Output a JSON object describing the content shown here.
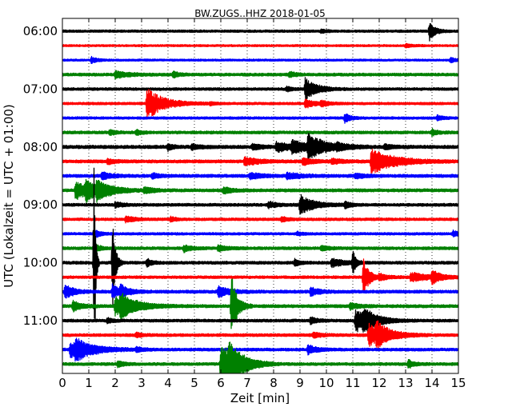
{
  "chart_data": {
    "type": "line",
    "title": "BW.ZUGS..HHZ 2018-01-05",
    "xlabel": "Zeit  [min]",
    "ylabel": "UTC (Lokalzeit = UTC + 01:00)",
    "xlim": [
      0,
      15
    ],
    "x_ticks": [
      "0",
      "1",
      "2",
      "3",
      "4",
      "5",
      "6",
      "7",
      "8",
      "9",
      "10",
      "11",
      "12",
      "13",
      "14",
      "15"
    ],
    "y_ticks": [
      {
        "label": "06:00",
        "trace": 0
      },
      {
        "label": "07:00",
        "trace": 4
      },
      {
        "label": "08:00",
        "trace": 8
      },
      {
        "label": "09:00",
        "trace": 12
      },
      {
        "label": "10:00",
        "trace": 16
      },
      {
        "label": "11:00",
        "trace": 20
      }
    ],
    "grid": "vertical dotted",
    "trace_minutes": 15,
    "colors": [
      "#000000",
      "#ff0000",
      "#0000ff",
      "#008000"
    ],
    "traces": [
      {
        "start": "06:00",
        "color": "#000000",
        "noise": 1.2,
        "events": [
          {
            "t": 13.9,
            "amp": 12,
            "dur": 0.2
          },
          {
            "t": 9.8,
            "amp": 2,
            "dur": 0.2
          }
        ]
      },
      {
        "start": "06:15",
        "color": "#ff0000",
        "noise": 1.0,
        "events": [
          {
            "t": 13.0,
            "amp": 2,
            "dur": 0.3
          }
        ]
      },
      {
        "start": "06:30",
        "color": "#0000ff",
        "noise": 1.0,
        "events": [
          {
            "t": 1.1,
            "amp": 4,
            "dur": 0.2
          },
          {
            "t": 14.7,
            "amp": 3,
            "dur": 0.2
          }
        ]
      },
      {
        "start": "06:45",
        "color": "#008000",
        "noise": 1.4,
        "events": [
          {
            "t": 2.0,
            "amp": 4,
            "dur": 0.5
          },
          {
            "t": 4.2,
            "amp": 4,
            "dur": 0.2
          },
          {
            "t": 8.6,
            "amp": 4,
            "dur": 0.2
          }
        ]
      },
      {
        "start": "07:00",
        "color": "#000000",
        "noise": 1.3,
        "events": [
          {
            "t": 9.2,
            "amp": 14,
            "dur": 0.4
          },
          {
            "t": 8.5,
            "amp": 3,
            "dur": 0.2
          }
        ]
      },
      {
        "start": "07:15",
        "color": "#ff0000",
        "noise": 1.2,
        "events": [
          {
            "t": 3.2,
            "amp": 20,
            "dur": 0.6
          },
          {
            "t": 9.2,
            "amp": 5,
            "dur": 0.4
          },
          {
            "t": 9.8,
            "amp": 4,
            "dur": 0.2
          },
          {
            "t": 5.6,
            "amp": 2,
            "dur": 0.2
          }
        ]
      },
      {
        "start": "07:30",
        "color": "#0000ff",
        "noise": 1.2,
        "events": [
          {
            "t": 10.7,
            "amp": 6,
            "dur": 0.2
          },
          {
            "t": 14.2,
            "amp": 3,
            "dur": 0.2
          }
        ]
      },
      {
        "start": "07:45",
        "color": "#008000",
        "noise": 1.4,
        "events": [
          {
            "t": 1.8,
            "amp": 3,
            "dur": 0.2
          },
          {
            "t": 14.0,
            "amp": 4,
            "dur": 0.2
          },
          {
            "t": 2.8,
            "amp": 3,
            "dur": 0.2
          }
        ]
      },
      {
        "start": "08:00",
        "color": "#000000",
        "noise": 1.6,
        "events": [
          {
            "t": 8.1,
            "amp": 6,
            "dur": 0.6
          },
          {
            "t": 8.7,
            "amp": 7,
            "dur": 0.6
          },
          {
            "t": 9.3,
            "amp": 14,
            "dur": 0.6
          },
          {
            "t": 4.0,
            "amp": 4,
            "dur": 0.2
          },
          {
            "t": 4.9,
            "amp": 3,
            "dur": 0.3
          },
          {
            "t": 7.2,
            "amp": 4,
            "dur": 0.3
          },
          {
            "t": 10.4,
            "amp": 3,
            "dur": 0.4
          },
          {
            "t": 12.2,
            "amp": 3,
            "dur": 0.3
          }
        ]
      },
      {
        "start": "08:15",
        "color": "#ff0000",
        "noise": 1.5,
        "events": [
          {
            "t": 11.7,
            "amp": 16,
            "dur": 0.8
          },
          {
            "t": 6.9,
            "amp": 5,
            "dur": 0.5
          },
          {
            "t": 9.1,
            "amp": 4,
            "dur": 0.4
          },
          {
            "t": 10.2,
            "amp": 3,
            "dur": 0.4
          },
          {
            "t": 1.7,
            "amp": 3,
            "dur": 0.3
          }
        ]
      },
      {
        "start": "08:30",
        "color": "#0000ff",
        "noise": 1.5,
        "events": [
          {
            "t": 1.5,
            "amp": 5,
            "dur": 0.3
          },
          {
            "t": 7.1,
            "amp": 4,
            "dur": 0.4
          },
          {
            "t": 8.5,
            "amp": 4,
            "dur": 0.5
          },
          {
            "t": 11.1,
            "amp": 3,
            "dur": 0.3
          },
          {
            "t": 3.4,
            "amp": 3,
            "dur": 0.3
          }
        ]
      },
      {
        "start": "08:45",
        "color": "#008000",
        "noise": 1.5,
        "events": [
          {
            "t": 0.5,
            "amp": 12,
            "dur": 0.5
          },
          {
            "t": 0.9,
            "amp": 10,
            "dur": 0.4
          },
          {
            "t": 1.3,
            "amp": 9,
            "dur": 0.6
          },
          {
            "t": 6.1,
            "amp": 4,
            "dur": 0.3
          },
          {
            "t": 3.1,
            "amp": 4,
            "dur": 0.3
          }
        ]
      },
      {
        "start": "09:00",
        "color": "#000000",
        "noise": 1.4,
        "events": [
          {
            "t": 9.0,
            "amp": 12,
            "dur": 0.5
          },
          {
            "t": 7.8,
            "amp": 4,
            "dur": 0.3
          },
          {
            "t": 10.7,
            "amp": 4,
            "dur": 0.2
          },
          {
            "t": 2.0,
            "amp": 3,
            "dur": 0.3
          }
        ]
      },
      {
        "start": "09:15",
        "color": "#ff0000",
        "noise": 1.3,
        "events": [
          {
            "t": 2.4,
            "amp": 4,
            "dur": 0.3
          },
          {
            "t": 8.3,
            "amp": 3,
            "dur": 0.2
          },
          {
            "t": 4.1,
            "amp": 3,
            "dur": 0.2
          }
        ]
      },
      {
        "start": "09:30",
        "color": "#0000ff",
        "noise": 1.2,
        "events": [
          {
            "t": 1.2,
            "amp": 6,
            "dur": 0.2
          },
          {
            "t": 14.8,
            "amp": 4,
            "dur": 0.2
          },
          {
            "t": 8.9,
            "amp": 2,
            "dur": 0.2
          }
        ]
      },
      {
        "start": "09:45",
        "color": "#008000",
        "noise": 1.4,
        "events": [
          {
            "t": 1.2,
            "amp": 6,
            "dur": 0.2
          },
          {
            "t": 4.6,
            "amp": 4,
            "dur": 0.3
          },
          {
            "t": 5.9,
            "amp": 4,
            "dur": 0.3
          },
          {
            "t": 9.8,
            "amp": 3,
            "dur": 0.3
          }
        ]
      },
      {
        "start": "10:00",
        "color": "#000000",
        "noise": 1.4,
        "events": [
          {
            "t": 1.2,
            "amp": 170,
            "dur": 0.05
          },
          {
            "t": 1.9,
            "amp": 60,
            "dur": 0.1
          },
          {
            "t": 3.2,
            "amp": 5,
            "dur": 0.2
          },
          {
            "t": 10.2,
            "amp": 6,
            "dur": 0.4
          },
          {
            "t": 11.0,
            "amp": 17,
            "dur": 0.1
          },
          {
            "t": 8.8,
            "amp": 4,
            "dur": 0.2
          }
        ]
      },
      {
        "start": "10:15",
        "color": "#ff0000",
        "noise": 1.3,
        "events": [
          {
            "t": 13.2,
            "amp": 6,
            "dur": 0.6
          },
          {
            "t": 14.0,
            "amp": 8,
            "dur": 0.3
          },
          {
            "t": 11.4,
            "amp": 25,
            "dur": 0.2
          },
          {
            "t": 12.0,
            "amp": 4,
            "dur": 0.3
          }
        ]
      },
      {
        "start": "10:30",
        "color": "#0000ff",
        "noise": 1.5,
        "events": [
          {
            "t": 0.1,
            "amp": 9,
            "dur": 0.3
          },
          {
            "t": 1.9,
            "amp": 10,
            "dur": 0.2
          },
          {
            "t": 2.2,
            "amp": 8,
            "dur": 0.3
          },
          {
            "t": 5.9,
            "amp": 7,
            "dur": 0.4
          },
          {
            "t": 9.4,
            "amp": 5,
            "dur": 0.3
          }
        ]
      },
      {
        "start": "10:45",
        "color": "#008000",
        "noise": 1.5,
        "events": [
          {
            "t": 2.0,
            "amp": 12,
            "dur": 0.7
          },
          {
            "t": 2.2,
            "amp": 10,
            "dur": 0.4
          },
          {
            "t": 6.4,
            "amp": 40,
            "dur": 0.2
          },
          {
            "t": 0.4,
            "amp": 6,
            "dur": 0.3
          },
          {
            "t": 10.9,
            "amp": 4,
            "dur": 0.3
          }
        ]
      },
      {
        "start": "11:00",
        "color": "#000000",
        "noise": 1.4,
        "events": [
          {
            "t": 11.1,
            "amp": 14,
            "dur": 0.6
          },
          {
            "t": 11.4,
            "amp": 10,
            "dur": 0.4
          },
          {
            "t": 9.4,
            "amp": 5,
            "dur": 0.2
          },
          {
            "t": 1.7,
            "amp": 3,
            "dur": 0.2
          }
        ]
      },
      {
        "start": "11:15",
        "color": "#ff0000",
        "noise": 1.4,
        "events": [
          {
            "t": 11.6,
            "amp": 15,
            "dur": 0.6
          },
          {
            "t": 11.9,
            "amp": 10,
            "dur": 0.4
          },
          {
            "t": 2.8,
            "amp": 3,
            "dur": 0.2
          },
          {
            "t": 9.5,
            "amp": 3,
            "dur": 0.3
          }
        ]
      },
      {
        "start": "11:30",
        "color": "#0000ff",
        "noise": 1.4,
        "events": [
          {
            "t": 0.3,
            "amp": 10,
            "dur": 0.8
          },
          {
            "t": 0.5,
            "amp": 8,
            "dur": 0.5
          },
          {
            "t": 9.3,
            "amp": 6,
            "dur": 0.3
          },
          {
            "t": 2.8,
            "amp": 3,
            "dur": 0.2
          }
        ]
      },
      {
        "start": "11:45",
        "color": "#008000",
        "noise": 1.4,
        "events": [
          {
            "t": 6.0,
            "amp": 28,
            "dur": 0.5
          },
          {
            "t": 6.3,
            "amp": 20,
            "dur": 0.5
          },
          {
            "t": 13.1,
            "amp": 5,
            "dur": 0.2
          },
          {
            "t": 2.1,
            "amp": 4,
            "dur": 0.2
          }
        ]
      }
    ]
  }
}
